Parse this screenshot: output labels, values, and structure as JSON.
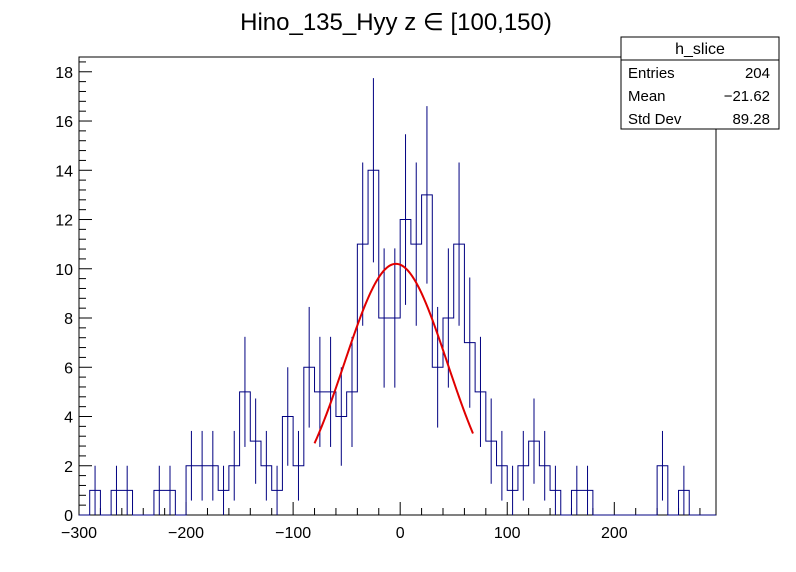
{
  "chart_data": {
    "type": "histogram",
    "title": "Hino_135_Hyy z  ∈ [100,150)",
    "xlabel": "",
    "ylabel": "",
    "xlim": [
      -300,
      295
    ],
    "ylim": [
      0,
      18.6
    ],
    "x_ticks": [
      -300,
      -200,
      -100,
      0,
      100,
      200
    ],
    "x_tick_labels": [
      "−300",
      "−200",
      "−100",
      "0",
      "100",
      "200"
    ],
    "y_ticks": [
      0,
      2,
      4,
      6,
      8,
      10,
      12,
      14,
      16,
      18
    ],
    "y_tick_labels": [
      "0",
      "2",
      "4",
      "6",
      "8",
      "10",
      "12",
      "14",
      "16",
      "18"
    ],
    "bin_width": 10,
    "bins": [
      {
        "lo": -300,
        "hi": -290,
        "count": 0
      },
      {
        "lo": -290,
        "hi": -280,
        "count": 1
      },
      {
        "lo": -280,
        "hi": -270,
        "count": 0
      },
      {
        "lo": -270,
        "hi": -260,
        "count": 1
      },
      {
        "lo": -260,
        "hi": -250,
        "count": 1
      },
      {
        "lo": -250,
        "hi": -240,
        "count": 0
      },
      {
        "lo": -240,
        "hi": -230,
        "count": 0
      },
      {
        "lo": -230,
        "hi": -220,
        "count": 1
      },
      {
        "lo": -220,
        "hi": -210,
        "count": 1
      },
      {
        "lo": -210,
        "hi": -200,
        "count": 0
      },
      {
        "lo": -200,
        "hi": -190,
        "count": 2
      },
      {
        "lo": -190,
        "hi": -180,
        "count": 2
      },
      {
        "lo": -180,
        "hi": -170,
        "count": 2
      },
      {
        "lo": -170,
        "hi": -160,
        "count": 1
      },
      {
        "lo": -160,
        "hi": -150,
        "count": 2
      },
      {
        "lo": -150,
        "hi": -140,
        "count": 5
      },
      {
        "lo": -140,
        "hi": -130,
        "count": 3
      },
      {
        "lo": -130,
        "hi": -120,
        "count": 2
      },
      {
        "lo": -120,
        "hi": -110,
        "count": 1
      },
      {
        "lo": -110,
        "hi": -100,
        "count": 4
      },
      {
        "lo": -100,
        "hi": -90,
        "count": 2
      },
      {
        "lo": -90,
        "hi": -80,
        "count": 6
      },
      {
        "lo": -80,
        "hi": -70,
        "count": 5
      },
      {
        "lo": -70,
        "hi": -60,
        "count": 5
      },
      {
        "lo": -60,
        "hi": -50,
        "count": 4
      },
      {
        "lo": -50,
        "hi": -40,
        "count": 5
      },
      {
        "lo": -40,
        "hi": -30,
        "count": 11
      },
      {
        "lo": -30,
        "hi": -20,
        "count": 14
      },
      {
        "lo": -20,
        "hi": -10,
        "count": 8
      },
      {
        "lo": -10,
        "hi": 0,
        "count": 8
      },
      {
        "lo": 0,
        "hi": 10,
        "count": 12
      },
      {
        "lo": 10,
        "hi": 20,
        "count": 11
      },
      {
        "lo": 20,
        "hi": 30,
        "count": 13
      },
      {
        "lo": 30,
        "hi": 40,
        "count": 6
      },
      {
        "lo": 40,
        "hi": 50,
        "count": 8
      },
      {
        "lo": 50,
        "hi": 60,
        "count": 11
      },
      {
        "lo": 60,
        "hi": 70,
        "count": 7
      },
      {
        "lo": 70,
        "hi": 80,
        "count": 5
      },
      {
        "lo": 80,
        "hi": 90,
        "count": 3
      },
      {
        "lo": 90,
        "hi": 100,
        "count": 2
      },
      {
        "lo": 100,
        "hi": 110,
        "count": 1
      },
      {
        "lo": 110,
        "hi": 120,
        "count": 2
      },
      {
        "lo": 120,
        "hi": 130,
        "count": 3
      },
      {
        "lo": 130,
        "hi": 140,
        "count": 2
      },
      {
        "lo": 140,
        "hi": 150,
        "count": 1
      },
      {
        "lo": 150,
        "hi": 160,
        "count": 0
      },
      {
        "lo": 160,
        "hi": 170,
        "count": 1
      },
      {
        "lo": 170,
        "hi": 180,
        "count": 1
      },
      {
        "lo": 180,
        "hi": 190,
        "count": 0
      },
      {
        "lo": 190,
        "hi": 200,
        "count": 0
      },
      {
        "lo": 200,
        "hi": 210,
        "count": 0
      },
      {
        "lo": 210,
        "hi": 220,
        "count": 0
      },
      {
        "lo": 220,
        "hi": 230,
        "count": 0
      },
      {
        "lo": 230,
        "hi": 240,
        "count": 0
      },
      {
        "lo": 240,
        "hi": 250,
        "count": 2
      },
      {
        "lo": 250,
        "hi": 260,
        "count": 0
      },
      {
        "lo": 260,
        "hi": 270,
        "count": 1
      },
      {
        "lo": 270,
        "hi": 280,
        "count": 0
      },
      {
        "lo": 280,
        "hi": 290,
        "count": 0
      },
      {
        "lo": 290,
        "hi": 300,
        "count": 0
      }
    ],
    "fit": {
      "type": "gaussian",
      "constant": 10.2,
      "mean": -4,
      "sigma": 48,
      "x_range": [
        -80,
        68
      ],
      "color": "#e00000"
    },
    "histogram_color": "#000080",
    "stats_box": {
      "name": "h_slice",
      "rows": [
        {
          "label": "Entries",
          "value": "204"
        },
        {
          "label": "Mean",
          "value": "−21.62"
        },
        {
          "label": "Std Dev",
          "value": "89.28"
        }
      ]
    },
    "grid": false,
    "legend": "top-right"
  }
}
